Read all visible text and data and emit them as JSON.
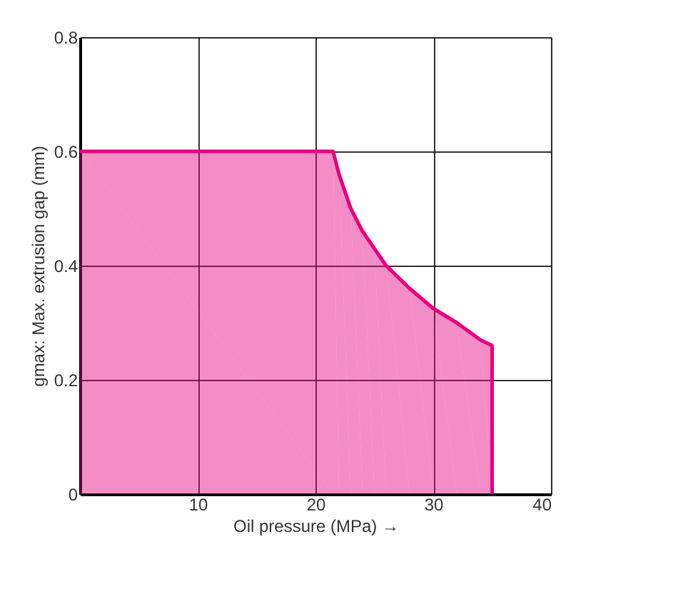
{
  "chart_data": {
    "type": "area",
    "xlabel": "Oil pressure (MPa) →",
    "ylabel": "gmax: Max. extrusion gap (mm)",
    "x": [
      0,
      21.5,
      22,
      23,
      24,
      25,
      26,
      28,
      30,
      32,
      34,
      35,
      35
    ],
    "series": [
      {
        "color": "#e6007e",
        "values": [
          0.6,
          0.6,
          0.56,
          0.5,
          0.46,
          0.43,
          0.4,
          0.36,
          0.325,
          0.3,
          0.27,
          0.26,
          0
        ]
      }
    ],
    "xlim": [
      0,
      40
    ],
    "xticks": [
      10,
      20,
      30,
      40
    ],
    "ylim": [
      0,
      0.8
    ],
    "yticks": [
      0,
      0.2,
      0.4,
      0.6,
      0.8
    ],
    "grid": true
  }
}
